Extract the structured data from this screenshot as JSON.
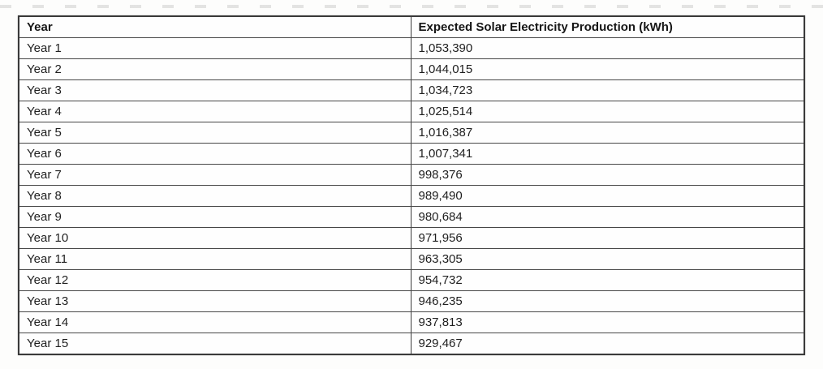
{
  "document": {
    "table": {
      "headers": [
        "Year",
        "Expected Solar Electricity Production (kWh)"
      ],
      "rows": [
        {
          "year": "Year 1",
          "production_kwh": "1,053,390"
        },
        {
          "year": "Year 2",
          "production_kwh": "1,044,015"
        },
        {
          "year": "Year 3",
          "production_kwh": "1,034,723"
        },
        {
          "year": "Year 4",
          "production_kwh": "1,025,514"
        },
        {
          "year": "Year 5",
          "production_kwh": "1,016,387"
        },
        {
          "year": "Year 6",
          "production_kwh": "1,007,341"
        },
        {
          "year": "Year 7",
          "production_kwh": "998,376"
        },
        {
          "year": "Year 8",
          "production_kwh": "989,490"
        },
        {
          "year": "Year 9",
          "production_kwh": "980,684"
        },
        {
          "year": "Year 10",
          "production_kwh": "971,956"
        },
        {
          "year": "Year 11",
          "production_kwh": "963,305"
        },
        {
          "year": "Year 12",
          "production_kwh": "954,732"
        },
        {
          "year": "Year 13",
          "production_kwh": "946,235"
        },
        {
          "year": "Year 14",
          "production_kwh": "937,813"
        },
        {
          "year": "Year 15",
          "production_kwh": "929,467"
        }
      ],
      "colors": {
        "border": "#3a3a3a",
        "text": "#1f1f1f",
        "background": "#fefefe"
      }
    }
  }
}
